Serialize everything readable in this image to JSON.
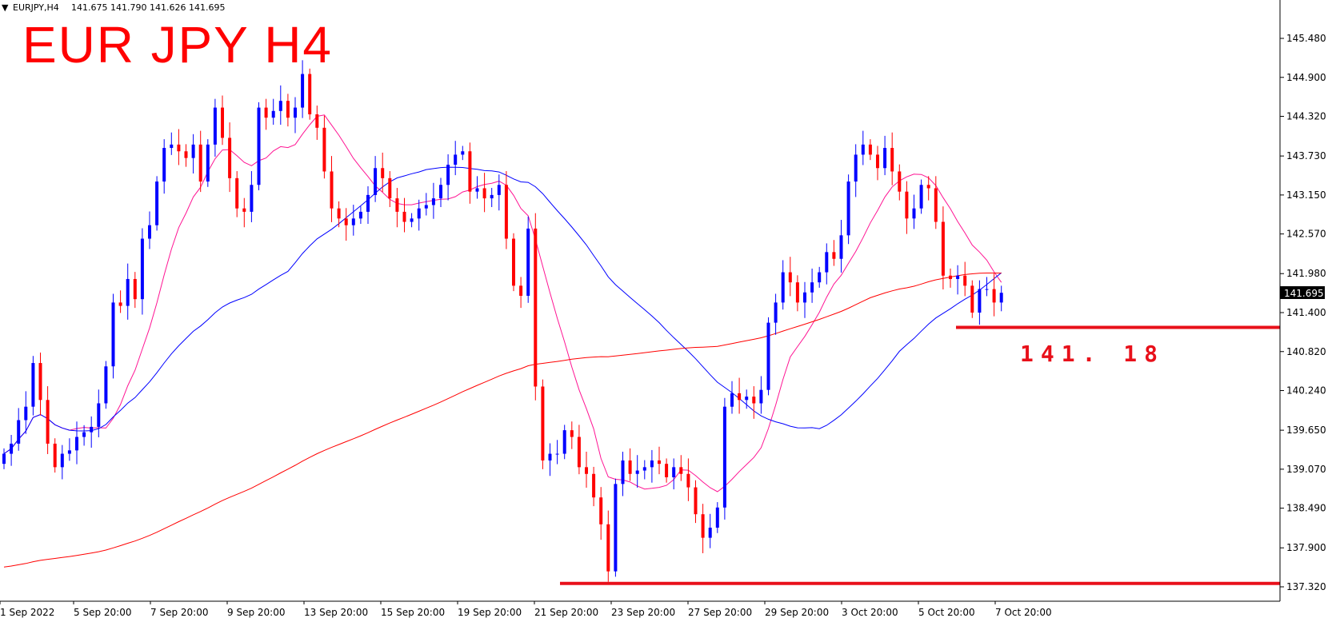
{
  "header": {
    "arrow_icon": "triangle-down-icon",
    "symbol": "EURJPY,H4",
    "ohlc": "141.675 141.790 141.626 141.695"
  },
  "chart_data": {
    "type": "candlestick",
    "title": "EUR JPY H4",
    "y_ticks": [
      "145.480",
      "144.900",
      "144.320",
      "143.730",
      "143.150",
      "142.570",
      "141.980",
      "141.400",
      "140.820",
      "140.240",
      "139.650",
      "139.070",
      "138.490",
      "137.900",
      "137.320"
    ],
    "x_ticks": [
      "1 Sep 2022",
      "5 Sep 20:00",
      "7 Sep 20:00",
      "9 Sep 20:00",
      "13 Sep 20:00",
      "15 Sep 20:00",
      "19 Sep 20:00",
      "21 Sep 20:00",
      "23 Sep 20:00",
      "27 Sep 20:00",
      "29 Sep 20:00",
      "3 Oct 20:00",
      "5 Oct 20:00",
      "7 Oct 20:00"
    ],
    "ylim": [
      137.1,
      146.2
    ],
    "current_price": "141.695",
    "levels": [
      {
        "price": 141.18,
        "label": "141. 18",
        "color": "#e8101a"
      },
      {
        "price": 137.37,
        "label": "",
        "color": "#e8101a"
      }
    ],
    "colors": {
      "up": "#0000ff",
      "down": "#ff0000",
      "ma_fast": "#ff1493",
      "ma_mid": "#0000ff",
      "ma_slow": "#ff0000"
    },
    "closes": [
      139.3,
      139.45,
      139.8,
      140.0,
      140.65,
      140.1,
      139.45,
      139.1,
      139.3,
      139.35,
      139.55,
      139.62,
      139.7,
      140.05,
      140.6,
      141.55,
      141.5,
      141.9,
      141.6,
      142.5,
      142.7,
      143.35,
      143.85,
      143.9,
      143.8,
      143.7,
      143.9,
      143.35,
      143.9,
      144.45,
      144.0,
      143.4,
      142.95,
      142.9,
      143.3,
      144.45,
      144.3,
      144.4,
      144.55,
      144.3,
      144.45,
      144.95,
      144.35,
      144.15,
      143.5,
      142.95,
      142.8,
      142.7,
      142.8,
      142.9,
      143.15,
      143.55,
      143.4,
      143.1,
      142.9,
      142.75,
      142.8,
      142.95,
      143.0,
      143.1,
      143.3,
      143.6,
      143.75,
      143.8,
      143.2,
      143.25,
      143.1,
      143.15,
      143.3,
      142.5,
      141.8,
      141.65,
      142.65,
      140.3,
      139.2,
      139.3,
      139.3,
      139.65,
      139.55,
      139.1,
      139.0,
      138.65,
      138.25,
      137.55,
      138.85,
      139.2,
      139.0,
      139.05,
      139.1,
      139.2,
      139.15,
      138.95,
      139.1,
      139.0,
      138.8,
      138.4,
      138.05,
      138.2,
      138.5,
      140.0,
      140.2,
      140.1,
      140.15,
      140.05,
      140.25,
      141.25,
      141.55,
      142.0,
      141.85,
      141.55,
      141.7,
      141.85,
      142.0,
      142.3,
      142.2,
      142.55,
      143.35,
      143.75,
      143.9,
      143.75,
      143.55,
      143.85,
      143.5,
      143.2,
      142.8,
      142.95,
      143.3,
      143.25,
      142.75,
      141.95,
      141.9,
      141.95,
      141.8,
      141.4,
      141.75,
      141.75,
      141.55,
      141.695
    ]
  }
}
